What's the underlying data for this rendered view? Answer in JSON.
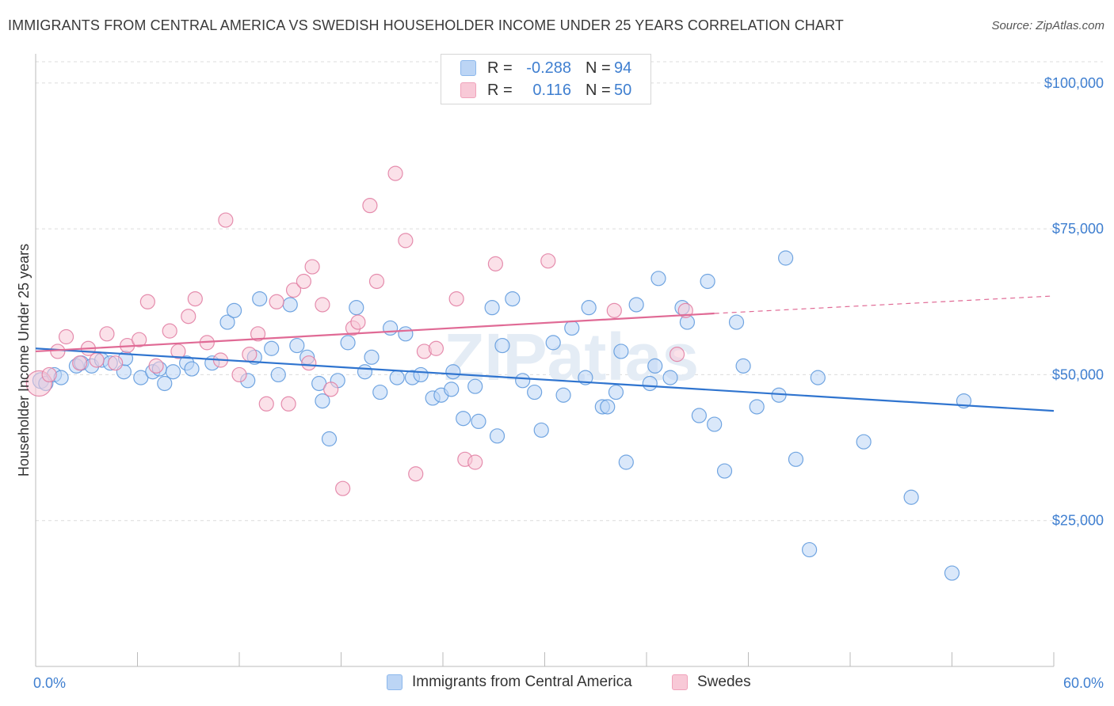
{
  "title": "IMMIGRANTS FROM CENTRAL AMERICA VS SWEDISH HOUSEHOLDER INCOME UNDER 25 YEARS CORRELATION CHART",
  "source": "Source: ZipAtlas.com",
  "watermark": "ZIPatlas",
  "legend": {
    "rows": [
      {
        "r_label": "R =",
        "r_value": "-0.288",
        "n_label": "N =",
        "n_value": "94",
        "color": "#8db8ec",
        "fill": "#bcd5f5"
      },
      {
        "r_label": "R =",
        "r_value": "0.116",
        "n_label": "N =",
        "n_value": "50",
        "color": "#f0a3bb",
        "fill": "#f8c9d7"
      }
    ]
  },
  "bottom_legend": [
    "Immigrants from Central America",
    "Swedes"
  ],
  "chart_data": {
    "type": "scatter",
    "xlabel": "",
    "ylabel": "Householder Income Under 25 years",
    "xlim": [
      0,
      60
    ],
    "ylim": [
      0,
      105000
    ],
    "x_tick_labels": [
      "0.0%",
      "60.0%"
    ],
    "y_ticks": [
      {
        "value": 25000,
        "label": "$25,000"
      },
      {
        "value": 50000,
        "label": "$50,000"
      },
      {
        "value": 75000,
        "label": "$75,000"
      },
      {
        "value": 100000,
        "label": "$100,000"
      }
    ],
    "grid": true,
    "series": [
      {
        "name": "Immigrants from Central America",
        "color": "#5b96dc",
        "fill": "#bcd5f5",
        "trend": {
          "x0": 0,
          "y0": 54500,
          "x1": 60,
          "y1": 43800
        },
        "points": [
          [
            0.3,
            49000
          ],
          [
            0.6,
            48500
          ],
          [
            1.1,
            50000
          ],
          [
            1.5,
            49500
          ],
          [
            2.4,
            51500
          ],
          [
            2.7,
            52000
          ],
          [
            3.3,
            51500
          ],
          [
            3.9,
            52500
          ],
          [
            4.4,
            52000
          ],
          [
            5.2,
            50500
          ],
          [
            5.3,
            52800
          ],
          [
            6.2,
            49500
          ],
          [
            6.9,
            50500
          ],
          [
            7.3,
            51000
          ],
          [
            7.6,
            48500
          ],
          [
            8.1,
            50500
          ],
          [
            8.9,
            52000
          ],
          [
            9.2,
            51000
          ],
          [
            10.4,
            52000
          ],
          [
            11.3,
            59000
          ],
          [
            11.7,
            61000
          ],
          [
            12.5,
            49000
          ],
          [
            12.9,
            53000
          ],
          [
            13.2,
            63000
          ],
          [
            13.9,
            54500
          ],
          [
            14.3,
            50000
          ],
          [
            15.0,
            62000
          ],
          [
            15.4,
            55000
          ],
          [
            16.0,
            53000
          ],
          [
            16.7,
            48500
          ],
          [
            16.9,
            45500
          ],
          [
            17.3,
            39000
          ],
          [
            17.8,
            49000
          ],
          [
            18.4,
            55500
          ],
          [
            18.9,
            61500
          ],
          [
            19.4,
            50500
          ],
          [
            19.8,
            53000
          ],
          [
            20.3,
            47000
          ],
          [
            20.9,
            58000
          ],
          [
            21.3,
            49500
          ],
          [
            21.8,
            57000
          ],
          [
            22.2,
            49500
          ],
          [
            22.7,
            50000
          ],
          [
            23.4,
            46000
          ],
          [
            23.9,
            46500
          ],
          [
            24.5,
            47500
          ],
          [
            24.6,
            50500
          ],
          [
            25.2,
            42500
          ],
          [
            25.9,
            48000
          ],
          [
            26.1,
            42000
          ],
          [
            26.9,
            61500
          ],
          [
            27.2,
            39500
          ],
          [
            27.5,
            55000
          ],
          [
            28.1,
            63000
          ],
          [
            28.7,
            49000
          ],
          [
            29.4,
            47000
          ],
          [
            29.8,
            40500
          ],
          [
            30.5,
            55500
          ],
          [
            31.1,
            46500
          ],
          [
            31.6,
            58000
          ],
          [
            32.4,
            49500
          ],
          [
            32.6,
            61500
          ],
          [
            33.4,
            44500
          ],
          [
            33.7,
            44500
          ],
          [
            34.2,
            47000
          ],
          [
            34.5,
            54000
          ],
          [
            34.8,
            35000
          ],
          [
            35.4,
            62000
          ],
          [
            36.2,
            48500
          ],
          [
            36.5,
            51500
          ],
          [
            36.7,
            66500
          ],
          [
            37.4,
            49500
          ],
          [
            38.1,
            61500
          ],
          [
            38.4,
            59000
          ],
          [
            39.1,
            43000
          ],
          [
            39.6,
            66000
          ],
          [
            40.0,
            41500
          ],
          [
            40.6,
            33500
          ],
          [
            41.3,
            59000
          ],
          [
            41.7,
            51500
          ],
          [
            42.5,
            44500
          ],
          [
            43.8,
            46500
          ],
          [
            44.2,
            70000
          ],
          [
            44.8,
            35500
          ],
          [
            45.6,
            20000
          ],
          [
            46.1,
            49500
          ],
          [
            48.8,
            38500
          ],
          [
            51.6,
            29000
          ],
          [
            54.0,
            16000
          ],
          [
            54.7,
            45500
          ]
        ]
      },
      {
        "name": "Swedes",
        "color": "#e07aa0",
        "fill": "#f8c9d7",
        "trend": {
          "x0": 0,
          "y0": 54000,
          "x1": 40,
          "y1": 60500,
          "x2": 60,
          "y2": 63500
        },
        "points": [
          [
            0.2,
            48500
          ],
          [
            0.8,
            50000
          ],
          [
            1.3,
            54000
          ],
          [
            1.8,
            56500
          ],
          [
            2.6,
            52000
          ],
          [
            3.1,
            54500
          ],
          [
            3.6,
            52500
          ],
          [
            4.2,
            57000
          ],
          [
            4.7,
            52000
          ],
          [
            5.4,
            55000
          ],
          [
            6.1,
            56000
          ],
          [
            6.6,
            62500
          ],
          [
            7.1,
            51500
          ],
          [
            7.9,
            57500
          ],
          [
            8.4,
            54000
          ],
          [
            9.0,
            60000
          ],
          [
            9.4,
            63000
          ],
          [
            10.1,
            55500
          ],
          [
            10.9,
            52500
          ],
          [
            11.2,
            76500
          ],
          [
            12.0,
            50000
          ],
          [
            12.6,
            53500
          ],
          [
            13.1,
            57000
          ],
          [
            13.6,
            45000
          ],
          [
            14.2,
            62500
          ],
          [
            14.9,
            45000
          ],
          [
            15.2,
            64500
          ],
          [
            15.8,
            66000
          ],
          [
            16.1,
            52000
          ],
          [
            16.3,
            68500
          ],
          [
            16.9,
            62000
          ],
          [
            17.4,
            47500
          ],
          [
            18.1,
            30500
          ],
          [
            18.7,
            58000
          ],
          [
            19.0,
            59000
          ],
          [
            19.7,
            79000
          ],
          [
            20.1,
            66000
          ],
          [
            21.2,
            84500
          ],
          [
            21.8,
            73000
          ],
          [
            22.4,
            33000
          ],
          [
            22.9,
            54000
          ],
          [
            23.6,
            54500
          ],
          [
            24.8,
            63000
          ],
          [
            25.3,
            35500
          ],
          [
            25.9,
            35000
          ],
          [
            27.1,
            69000
          ],
          [
            30.2,
            69500
          ],
          [
            34.1,
            61000
          ],
          [
            37.8,
            53500
          ],
          [
            38.3,
            61000
          ]
        ]
      }
    ]
  }
}
